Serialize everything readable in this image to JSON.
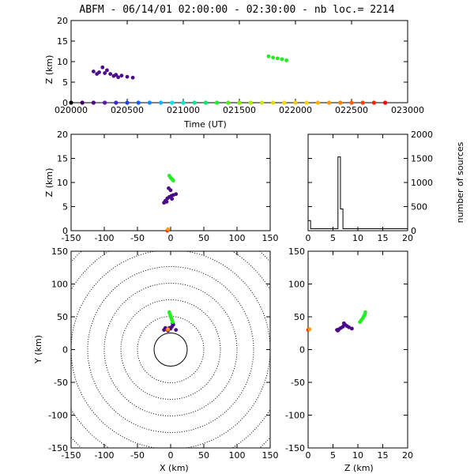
{
  "title": "ABFM - 06/14/01 02:00:00 - 02:30:00 - nb loc.=   2214",
  "colors": {
    "purple": "#4b0a8c",
    "dark_purple": "#2a0050",
    "green": "#22ee22",
    "red": "#ff2a00",
    "orange": "#ffa000",
    "black": "#000000"
  },
  "panels": {
    "time_height": {
      "xlabel": "Time (UT)",
      "ylabel": "Z (km)",
      "xticks": [
        "020000",
        "020500",
        "021000",
        "021500",
        "022000",
        "022500",
        "023000"
      ],
      "yticks": [
        "0",
        "5",
        "10",
        "15",
        "20"
      ]
    },
    "xz": {
      "ylabel": "Z (km)",
      "xticks": [
        "-150",
        "-100",
        "-50",
        "0",
        "50",
        "100",
        "150"
      ],
      "yticks": [
        "0",
        "5",
        "10",
        "15",
        "20"
      ]
    },
    "histogram": {
      "ylabel": "number of sources",
      "xticks": [
        "0",
        "5",
        "10",
        "15",
        "20"
      ],
      "yticks": [
        "0",
        "500",
        "1000",
        "1500",
        "2000"
      ]
    },
    "xy": {
      "xlabel": "X (km)",
      "ylabel": "Y (km)",
      "xticks": [
        "-150",
        "-100",
        "-50",
        "0",
        "50",
        "100",
        "150"
      ],
      "yticks": [
        "-150",
        "-100",
        "-50",
        "0",
        "50",
        "100",
        "150"
      ]
    },
    "zy": {
      "xlabel": "Z (km)",
      "xticks": [
        "0",
        "5",
        "10",
        "15",
        "20"
      ],
      "yticks": [
        "-150",
        "-100",
        "-50",
        "0",
        "50",
        "100",
        "150"
      ]
    }
  },
  "chart_data": [
    {
      "type": "scatter",
      "panel": "time_height",
      "x_unit": "minutes after 02:00:00 UT",
      "xlim": [
        0,
        30
      ],
      "ylim": [
        0,
        20
      ],
      "series": [
        {
          "color": "#4b0a8c",
          "points": [
            [
              2.0,
              7.6
            ],
            [
              2.5,
              7.4
            ],
            [
              3.0,
              7.2
            ],
            [
              3.5,
              7.0
            ],
            [
              4.0,
              6.8
            ],
            [
              4.5,
              6.6
            ],
            [
              5.0,
              6.3
            ],
            [
              5.5,
              6.1
            ],
            [
              2.8,
              8.6
            ],
            [
              3.2,
              7.9
            ],
            [
              4.2,
              6.2
            ],
            [
              3.8,
              6.5
            ],
            [
              2.3,
              7.0
            ]
          ]
        },
        {
          "color": "#22ee22",
          "points": [
            [
              17.6,
              11.3
            ],
            [
              18.0,
              11.0
            ],
            [
              18.4,
              10.8
            ],
            [
              18.8,
              10.6
            ],
            [
              19.2,
              10.3
            ]
          ]
        }
      ],
      "color_bar_markers": {
        "x": [
          0,
          1,
          2,
          3,
          4,
          5,
          6,
          7,
          8,
          9,
          10,
          11,
          12,
          13,
          14,
          15,
          16,
          17,
          18,
          19,
          20,
          21,
          22,
          23,
          24,
          25,
          26,
          27,
          28
        ],
        "colors": [
          "#000000",
          "#3a0060",
          "#4b0a8c",
          "#5a14b0",
          "#3a2ad0",
          "#2040e8",
          "#1060f8",
          "#0090ff",
          "#00b8ff",
          "#00e0f0",
          "#00e8c0",
          "#00e890",
          "#00e860",
          "#20ea30",
          "#50ee10",
          "#80ee00",
          "#a8ee00",
          "#c8e800",
          "#e0e000",
          "#f0d800",
          "#f8c800",
          "#ffd000",
          "#ffb000",
          "#ff9800",
          "#ff8000",
          "#ff6000",
          "#ff4000",
          "#ff2000",
          "#ff0000"
        ]
      }
    },
    {
      "type": "scatter",
      "panel": "xz",
      "xlim": [
        -150,
        150
      ],
      "ylim": [
        0,
        20
      ],
      "series": [
        {
          "color": "#4b0a8c",
          "points": [
            [
              -10,
              5.8
            ],
            [
              -8,
              6.2
            ],
            [
              -5,
              6.7
            ],
            [
              -2,
              7.0
            ],
            [
              1,
              7.2
            ],
            [
              4,
              7.4
            ],
            [
              8,
              7.6
            ],
            [
              0,
              8.4
            ],
            [
              -3,
              8.8
            ],
            [
              -6,
              6.0
            ],
            [
              2,
              6.6
            ]
          ]
        },
        {
          "color": "#22ee22",
          "points": [
            [
              -2,
              11.4
            ],
            [
              0,
              11.0
            ],
            [
              2,
              10.7
            ],
            [
              4,
              10.4
            ]
          ]
        },
        {
          "color": "#ff2a00",
          "points": [
            [
              -5,
              0.0
            ]
          ]
        },
        {
          "color": "#ffa000",
          "points": [
            [
              -4,
              0.3
            ]
          ]
        }
      ]
    },
    {
      "type": "line",
      "panel": "histogram",
      "xlim": [
        0,
        20
      ],
      "ylim": [
        0,
        2000
      ],
      "x": [
        0,
        0.5,
        1,
        1.5,
        2,
        2.5,
        3,
        3.5,
        4,
        4.5,
        5,
        5.5,
        6,
        6.5,
        7,
        7.5,
        8,
        8.5,
        9,
        9.5,
        10,
        10.5,
        11,
        11.5,
        12,
        12.5,
        13,
        13.5,
        14,
        14.5,
        15,
        15.5,
        16,
        16.5,
        17,
        17.5,
        18,
        18.5,
        19,
        19.5
      ],
      "values": [
        210,
        40,
        40,
        40,
        40,
        40,
        40,
        40,
        40,
        40,
        40,
        40,
        1530,
        450,
        40,
        40,
        40,
        40,
        40,
        40,
        40,
        40,
        40,
        40,
        40,
        40,
        40,
        40,
        40,
        40,
        40,
        40,
        40,
        40,
        40,
        40,
        40,
        40,
        40,
        40
      ]
    },
    {
      "type": "scatter",
      "panel": "xy",
      "xlim": [
        -150,
        150
      ],
      "ylim": [
        -150,
        150
      ],
      "range_rings_km": [
        25,
        50,
        75,
        100,
        125,
        150,
        175,
        200
      ],
      "series": [
        {
          "color": "#4b0a8c",
          "points": [
            [
              -10,
              30
            ],
            [
              -6,
              31
            ],
            [
              -2,
              33
            ],
            [
              2,
              35
            ],
            [
              4,
              38
            ],
            [
              -4,
              29
            ],
            [
              0,
              32
            ],
            [
              8,
              30
            ],
            [
              3,
              40
            ],
            [
              -8,
              33
            ]
          ]
        },
        {
          "color": "#22ee22",
          "points": [
            [
              -2,
              57
            ],
            [
              -1,
              54
            ],
            [
              0,
              51
            ],
            [
              1,
              48
            ],
            [
              2,
              45
            ],
            [
              3,
              42
            ]
          ]
        },
        {
          "color": "#ff2a00",
          "points": [
            [
              -5,
              30
            ]
          ]
        },
        {
          "color": "#ffa000",
          "points": [
            [
              -4,
              31
            ]
          ]
        }
      ]
    },
    {
      "type": "scatter",
      "panel": "zy",
      "xlim": [
        0,
        20
      ],
      "ylim": [
        -150,
        150
      ],
      "series": [
        {
          "color": "#4b0a8c",
          "points": [
            [
              5.8,
              30
            ],
            [
              6.2,
              31
            ],
            [
              6.6,
              33
            ],
            [
              7.0,
              35
            ],
            [
              7.4,
              38
            ],
            [
              7.2,
              40
            ],
            [
              8.2,
              34
            ],
            [
              8.8,
              32
            ],
            [
              6.0,
              29
            ],
            [
              7.8,
              36
            ]
          ]
        },
        {
          "color": "#22ee22",
          "points": [
            [
              10.4,
              42
            ],
            [
              10.7,
              45
            ],
            [
              11.0,
              48
            ],
            [
              11.2,
              51
            ],
            [
              11.4,
              54
            ],
            [
              11.5,
              57
            ]
          ]
        },
        {
          "color": "#ff2a00",
          "points": [
            [
              0.0,
              30
            ]
          ]
        },
        {
          "color": "#ffa000",
          "points": [
            [
              0.3,
              31
            ]
          ]
        }
      ]
    }
  ]
}
